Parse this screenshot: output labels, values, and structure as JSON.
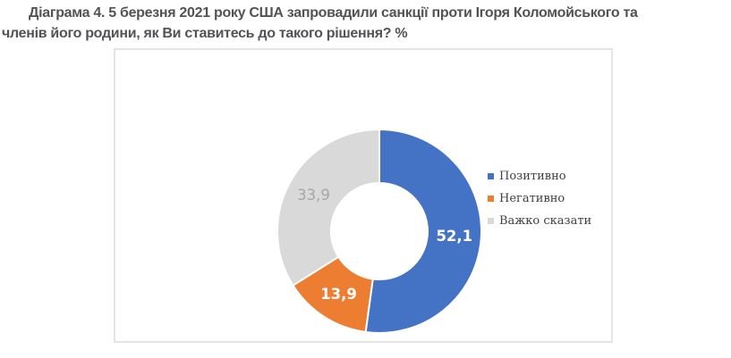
{
  "header": {
    "line1": "Діаграма 4. 5 березня 2021 року США запровадили санкції проти Ігоря Коломойського та",
    "line2": "членів його родини, як Ви ставитесь до такого рішення? %"
  },
  "chart_data": {
    "type": "pie",
    "subtype": "donut",
    "unit": "%",
    "title": "",
    "legend_position": "right",
    "donut_hole_ratio": 0.47,
    "start_angle_deg": 0,
    "direction": "clockwise",
    "categories": [
      "Позитивно",
      "Негативно",
      "Важко сказати"
    ],
    "series": [
      {
        "name": "Позитивно",
        "value": 52.1,
        "label": "52,1",
        "color": "#4472C4",
        "label_color": "#FFFFFF",
        "label_weight": "bold"
      },
      {
        "name": "Негативно",
        "value": 13.9,
        "label": "13,9",
        "color": "#ED7D31",
        "label_color": "#FFFFFF",
        "label_weight": "bold"
      },
      {
        "name": "Важко сказати",
        "value": 33.9,
        "label": "33,9",
        "color": "#D9D9D9",
        "label_color": "#A6A6A6",
        "label_weight": "normal"
      }
    ]
  }
}
